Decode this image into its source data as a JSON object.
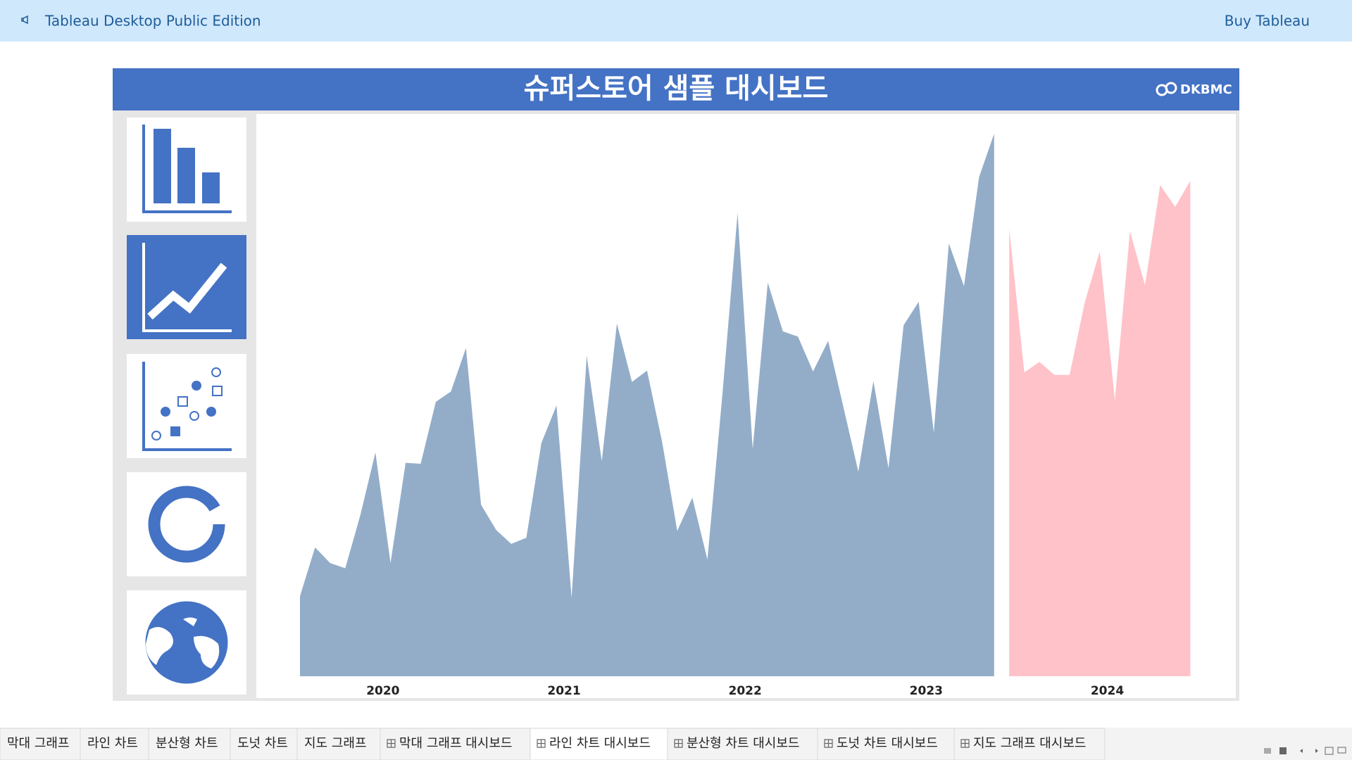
{
  "header": {
    "title": "Tableau Desktop Public Edition",
    "buy": "Buy Tableau"
  },
  "dashboard": {
    "title": "슈퍼스토어 샘플 대시보드",
    "logo": "DKBMC"
  },
  "chart_data": {
    "type": "area",
    "categories": [
      null,
      null,
      null,
      null,
      null,
      "2020",
      null,
      null,
      null,
      null,
      null,
      null,
      null,
      null,
      null,
      null,
      null,
      "2021",
      null,
      null,
      null,
      null,
      null,
      null,
      null,
      null,
      null,
      null,
      null,
      "2022",
      null,
      null,
      null,
      null,
      null,
      null,
      null,
      null,
      null,
      null,
      null,
      "2023",
      null,
      null,
      null,
      null,
      null,
      null,
      null,
      null,
      null,
      null,
      null,
      "2024",
      null,
      null,
      null,
      null,
      null,
      null
    ],
    "series": [
      {
        "color": "#93adc9",
        "values": [
          92,
          148,
          130,
          124,
          185,
          257,
          130,
          245,
          244,
          315,
          327,
          377,
          197,
          168,
          152,
          159,
          268,
          311,
          90,
          368,
          247,
          405,
          338,
          351,
          269,
          167,
          205,
          134,
          325,
          532,
          261,
          452,
          396,
          390,
          350,
          385,
          310,
          235,
          339,
          239,
          403,
          430,
          280,
          497,
          448,
          573,
          623,
          null,
          null,
          null,
          null,
          null,
          null,
          null,
          null,
          null,
          null,
          null,
          null,
          null
        ]
      },
      {
        "color": "#ffc2c9",
        "values": [
          null,
          null,
          null,
          null,
          null,
          null,
          null,
          null,
          null,
          null,
          null,
          null,
          null,
          null,
          null,
          null,
          null,
          null,
          null,
          null,
          null,
          null,
          null,
          null,
          null,
          null,
          null,
          null,
          null,
          null,
          null,
          null,
          null,
          null,
          null,
          null,
          null,
          null,
          null,
          null,
          null,
          null,
          null,
          null,
          null,
          null,
          null,
          514,
          349,
          361,
          346,
          346,
          429,
          488,
          317,
          511,
          449,
          564,
          539,
          569
        ]
      }
    ]
  },
  "tabs": [
    {
      "label": "막대 그래프",
      "dashboard": false
    },
    {
      "label": "라인 차트",
      "dashboard": false
    },
    {
      "label": "분산형 차트",
      "dashboard": false
    },
    {
      "label": "도넛 차트",
      "dashboard": false
    },
    {
      "label": "지도 그래프",
      "dashboard": false
    },
    {
      "label": "막대 그래프 대시보드",
      "dashboard": true
    },
    {
      "label": "라인 차트 대시보드",
      "dashboard": true,
      "active": true
    },
    {
      "label": "분산형 차트 대시보드",
      "dashboard": true
    },
    {
      "label": "도넛 차트 대시보드",
      "dashboard": true
    },
    {
      "label": "지도 그래프 대시보드",
      "dashboard": true
    }
  ]
}
